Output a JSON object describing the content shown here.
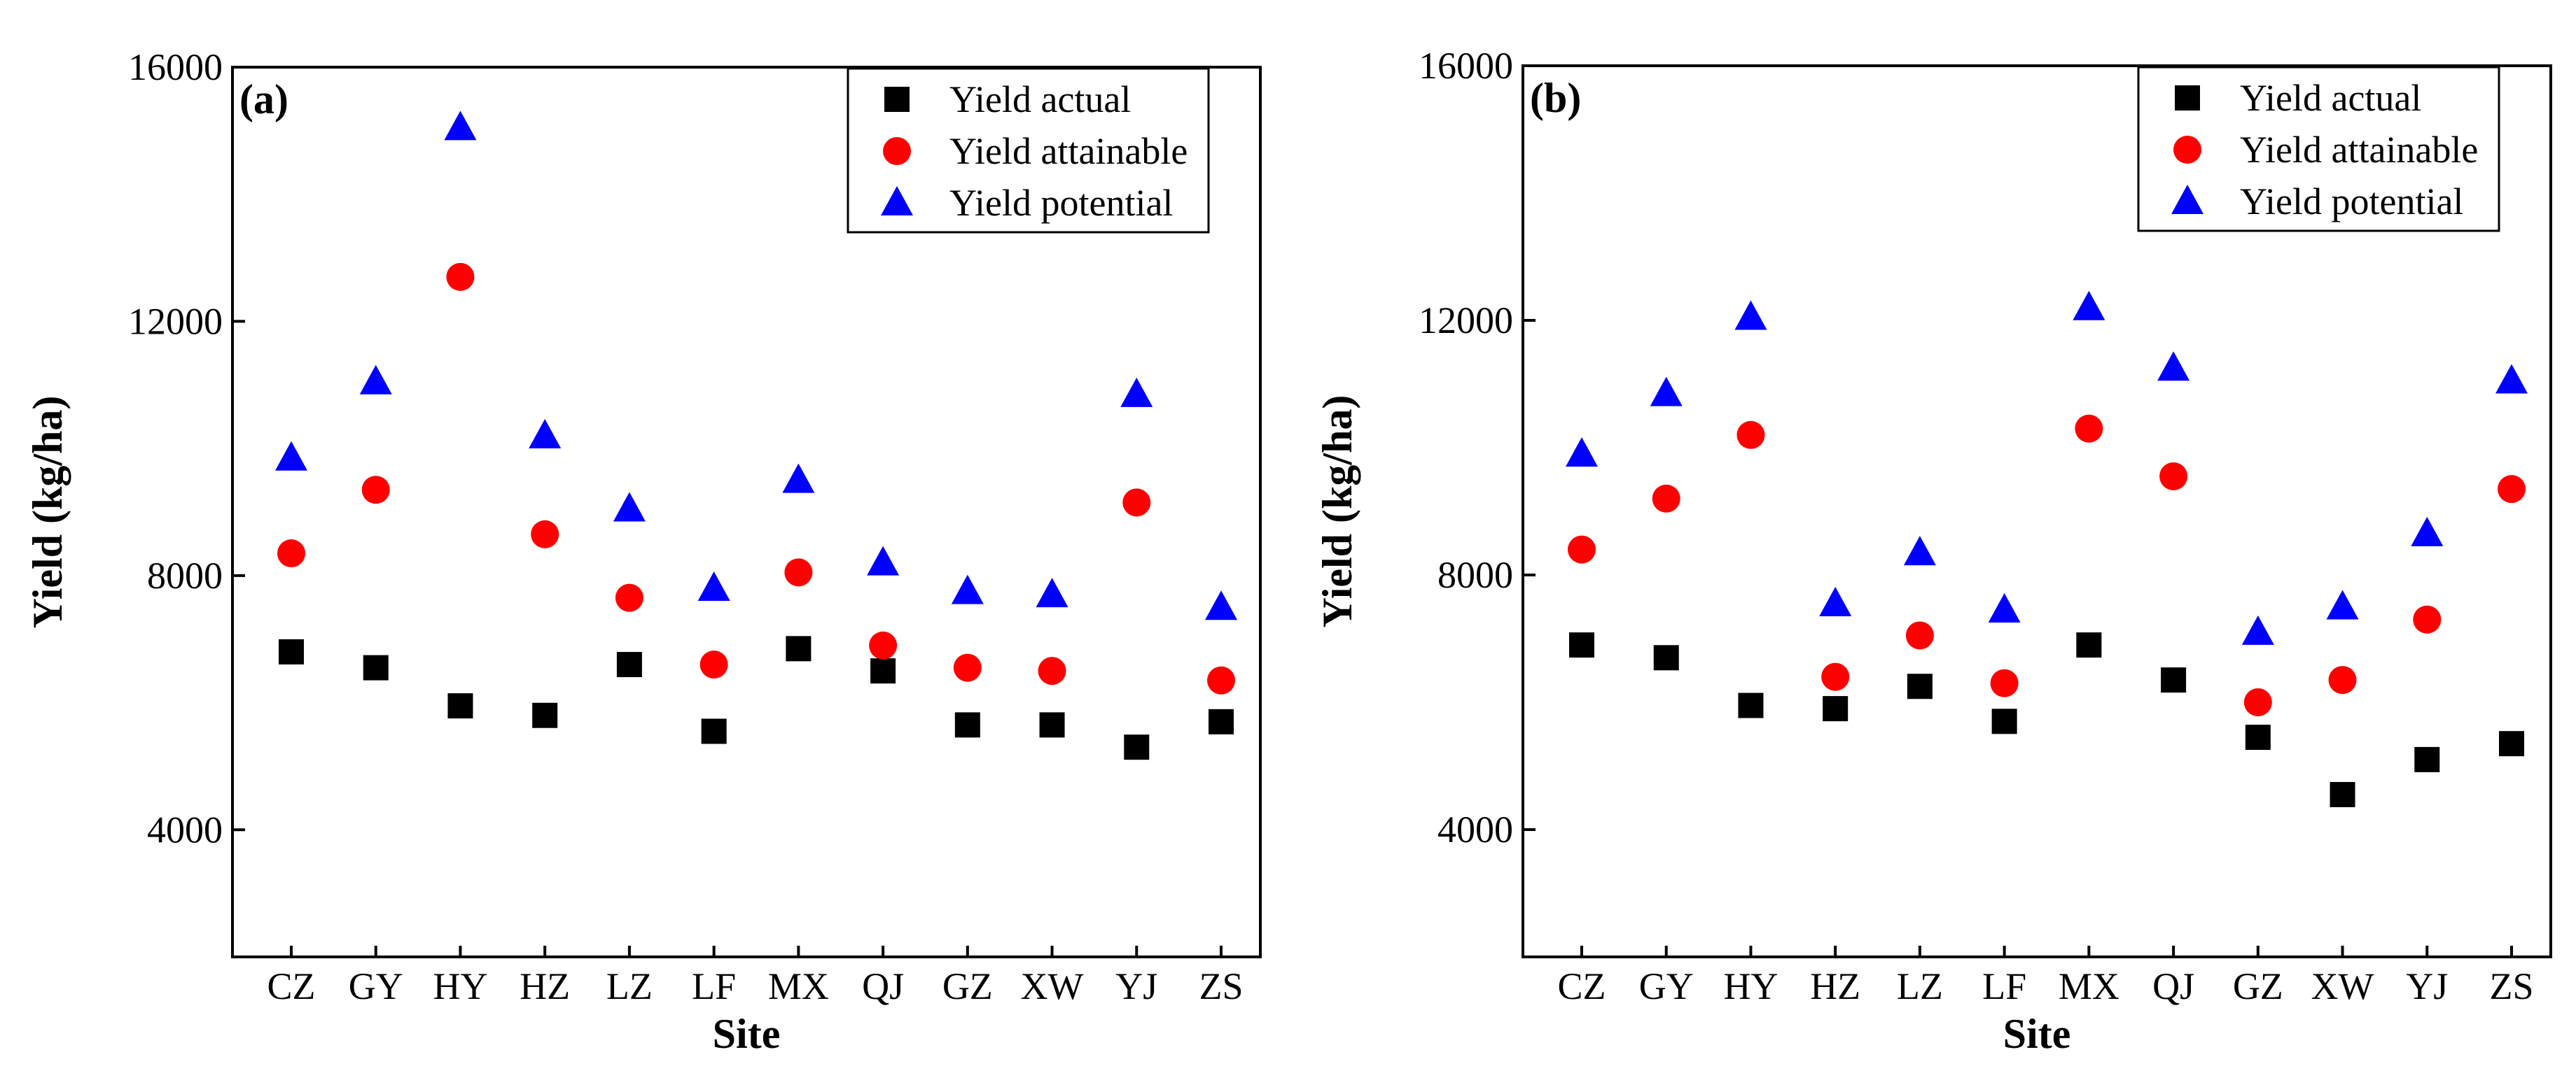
{
  "chart_data": [
    {
      "type": "scatter",
      "panel_label": "(a)",
      "xlabel": "Site",
      "ylabel": "Yield (kg/ha)",
      "categories": [
        "CZ",
        "GY",
        "HY",
        "HZ",
        "LZ",
        "LF",
        "MX",
        "QJ",
        "GZ",
        "XW",
        "YJ",
        "ZS"
      ],
      "ylim": [
        2000,
        16000
      ],
      "yticks": [
        4000,
        8000,
        12000,
        16000
      ],
      "legend_position": "top-right",
      "series": [
        {
          "name": "Yield actual",
          "marker": "square",
          "color": "#000000",
          "values": [
            6800,
            6550,
            5950,
            5800,
            6600,
            5550,
            6850,
            6500,
            5650,
            5650,
            5300,
            5700
          ]
        },
        {
          "name": "Yield attainable",
          "marker": "circle",
          "color": "#ff0000",
          "values": [
            8350,
            9350,
            12700,
            8650,
            7650,
            6600,
            8050,
            6900,
            6550,
            6500,
            9150,
            6350
          ]
        },
        {
          "name": "Yield potential",
          "marker": "triangle",
          "color": "#0000ff",
          "values": [
            9850,
            11050,
            15050,
            10200,
            9050,
            7800,
            9500,
            8200,
            7750,
            7700,
            10850,
            7500
          ]
        }
      ]
    },
    {
      "type": "scatter",
      "panel_label": "(b)",
      "xlabel": "Site",
      "ylabel": "Yield (kg/ha)",
      "categories": [
        "CZ",
        "GY",
        "HY",
        "HZ",
        "LZ",
        "LF",
        "MX",
        "QJ",
        "GZ",
        "XW",
        "YJ",
        "ZS"
      ],
      "ylim": [
        2000,
        16000
      ],
      "yticks": [
        4000,
        8000,
        12000,
        16000
      ],
      "legend_position": "top-right",
      "series": [
        {
          "name": "Yield actual",
          "marker": "square",
          "color": "#000000",
          "values": [
            6900,
            6700,
            5950,
            5900,
            6250,
            5700,
            6900,
            6350,
            5450,
            4550,
            5100,
            5350
          ]
        },
        {
          "name": "Yield attainable",
          "marker": "circle",
          "color": "#ff0000",
          "values": [
            8400,
            9200,
            10200,
            6400,
            7050,
            6300,
            10300,
            9550,
            6000,
            6350,
            7300,
            9350
          ]
        },
        {
          "name": "Yield potential",
          "marker": "triangle",
          "color": "#0000ff",
          "values": [
            9900,
            10850,
            12050,
            7550,
            8350,
            7450,
            12200,
            11250,
            7100,
            7500,
            8650,
            11050
          ]
        }
      ]
    }
  ]
}
